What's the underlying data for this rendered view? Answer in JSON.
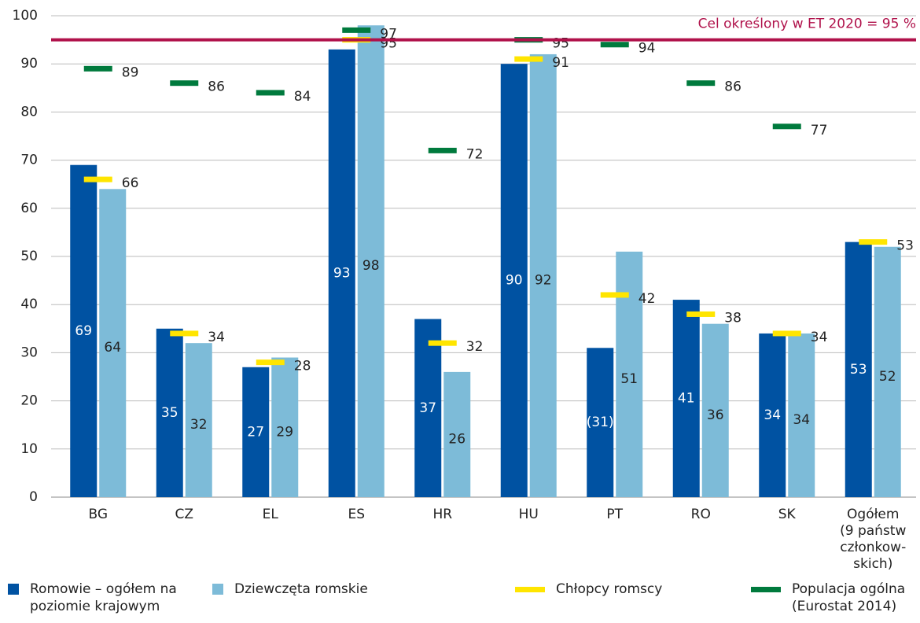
{
  "chart_data": {
    "type": "bar",
    "categories": [
      "BG",
      "CZ",
      "EL",
      "ES",
      "HR",
      "HU",
      "PT",
      "RO",
      "SK",
      "Ogółem\n(9 państw\nczłonkow-\nskich)"
    ],
    "series": [
      {
        "name": "Romowie – ogółem na poziomie krajowym",
        "color": "#0052a2",
        "kind": "bar",
        "values": [
          69,
          35,
          27,
          93,
          37,
          90,
          31,
          41,
          34,
          53
        ],
        "value_labels": [
          "69",
          "35",
          "27",
          "93",
          "37",
          "90",
          "(31)",
          "41",
          "34",
          "53"
        ]
      },
      {
        "name": "Dziewczęta romskie",
        "color": "#7dbbd8",
        "kind": "bar",
        "values": [
          64,
          32,
          29,
          98,
          26,
          92,
          51,
          36,
          34,
          52
        ]
      },
      {
        "name": "Chłopcy romscy",
        "color": "#ffe500",
        "kind": "marker",
        "values": [
          66,
          34,
          28,
          95,
          32,
          91,
          42,
          38,
          34,
          53
        ]
      },
      {
        "name": "Populacja ogólna (Eurostat 2014)",
        "color": "#007a3d",
        "kind": "marker",
        "values": [
          89,
          86,
          84,
          97,
          72,
          95,
          94,
          86,
          77,
          null
        ]
      }
    ],
    "target": {
      "value": 95,
      "label": "Cel określony w ET 2020 = 95 %",
      "color": "#b0124b"
    },
    "ylim": [
      0,
      100
    ],
    "yticks": [
      0,
      10,
      20,
      30,
      40,
      50,
      60,
      70,
      80,
      90,
      100
    ],
    "grid": true
  }
}
